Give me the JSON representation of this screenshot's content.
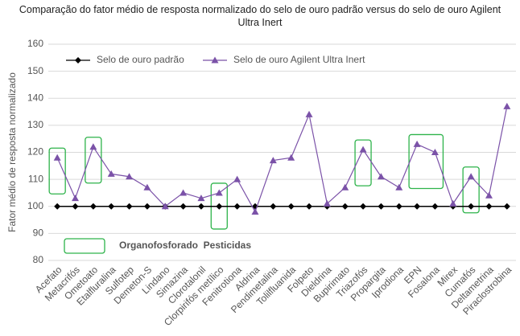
{
  "chart_data": {
    "type": "line",
    "title": "Comparação do fator médio de resposta normalizado do selo de ouro padrão versus do selo de ouro Agilent Ultra Inert",
    "y_label": "Fator médio de resposta normalizado",
    "categories": [
      "Acefato",
      "Metacrifós",
      "Ometoato",
      "Etalfluralina",
      "Sulfotep",
      "Demeton-S",
      "Lindano",
      "Simazina",
      "Clorotalonil",
      "Clorpirifós metílico",
      "Fenitrotiona",
      "Aldrina",
      "Pendimetalina",
      "Tolilfluanida",
      "Folpeto",
      "Dieldrina",
      "Bupirimato",
      "Triazofós",
      "Propargita",
      "Iprodiona",
      "EPN",
      "Fosalona",
      "Mirex",
      "Cumafós",
      "Deltametrina",
      "Piraclostrobina"
    ],
    "series": [
      {
        "name": "Selo de ouro padrão",
        "color": "#000000",
        "marker": "diamond",
        "values": [
          100,
          100,
          100,
          100,
          100,
          100,
          100,
          100,
          100,
          100,
          100,
          100,
          100,
          100,
          100,
          100,
          100,
          100,
          100,
          100,
          100,
          100,
          100,
          100,
          100,
          100
        ]
      },
      {
        "name": "Selo de ouro Agilent Ultra Inert",
        "color": "#7b52a8",
        "marker": "triangle",
        "values": [
          118,
          103,
          122,
          112,
          111,
          107,
          100,
          105,
          103,
          105,
          110,
          98,
          117,
          118,
          134,
          101,
          107,
          121,
          111,
          107,
          123,
          120,
          101,
          111,
          104,
          137
        ]
      }
    ],
    "highlight_label": "Organofosforado  Pesticidas",
    "highlight_color": "#2db34a",
    "highlight_groups": [
      [
        "Acefato"
      ],
      [
        "Ometoato"
      ],
      [
        "Clorpirifós metílico"
      ],
      [
        "Triazofós"
      ],
      [
        "EPN",
        "Fosalona"
      ],
      [
        "Cumafós"
      ]
    ],
    "ylim": [
      80,
      160
    ],
    "yticks": [
      80,
      90,
      100,
      110,
      120,
      130,
      140,
      150,
      160
    ],
    "grid": true
  }
}
